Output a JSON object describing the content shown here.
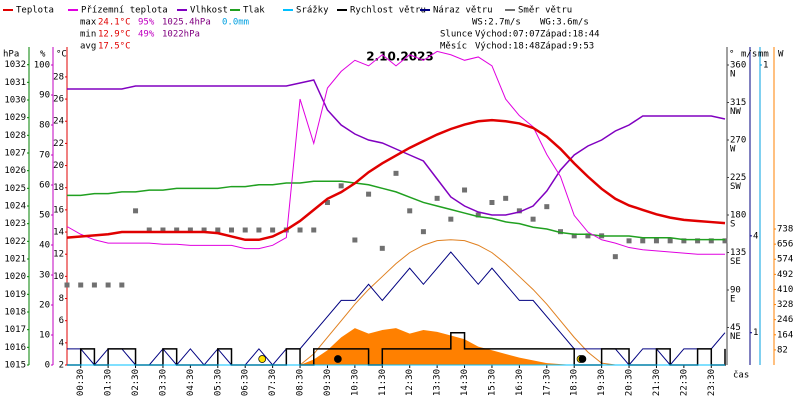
{
  "chart_data": {
    "type": "line",
    "title": "2.10.2023",
    "xlabel": "čas",
    "x": [
      0,
      0.5,
      1,
      1.5,
      2,
      2.5,
      3,
      3.5,
      4,
      4.5,
      5,
      5.5,
      6,
      6.5,
      7,
      7.5,
      8,
      8.5,
      9,
      9.5,
      10,
      10.5,
      11,
      11.5,
      12,
      12.5,
      13,
      13.5,
      14,
      14.5,
      15,
      15.5,
      16,
      16.5,
      17,
      17.5,
      18,
      18.5,
      19,
      19.5,
      20,
      20.5,
      21,
      21.5,
      22,
      22.5,
      23,
      23.5,
      24
    ],
    "xlim": [
      0,
      24
    ],
    "xticks": [
      {
        "value": 0.5,
        "label": "00:30"
      },
      {
        "value": 1.5,
        "label": "01:30"
      },
      {
        "value": 2.5,
        "label": "02:30"
      },
      {
        "value": 3.5,
        "label": "03:30"
      },
      {
        "value": 4.5,
        "label": "04:30"
      },
      {
        "value": 5.5,
        "label": "05:30"
      },
      {
        "value": 6.5,
        "label": "06:30"
      },
      {
        "value": 7.5,
        "label": "07:30"
      },
      {
        "value": 8.5,
        "label": "08:30"
      },
      {
        "value": 9.5,
        "label": "09:30"
      },
      {
        "value": 10.5,
        "label": "10:30"
      },
      {
        "value": 11.5,
        "label": "11:30"
      },
      {
        "value": 12.5,
        "label": "12:30"
      },
      {
        "value": 13.5,
        "label": "13:30"
      },
      {
        "value": 14.5,
        "label": "14:30"
      },
      {
        "value": 15.5,
        "label": "15:30"
      },
      {
        "value": 16.5,
        "label": "16:30"
      },
      {
        "value": 17.5,
        "label": "17:30"
      },
      {
        "value": 18.5,
        "label": "18:30"
      },
      {
        "value": 19.5,
        "label": "19:30"
      },
      {
        "value": 20.5,
        "label": "20:30"
      },
      {
        "value": 21.5,
        "label": "21:30"
      },
      {
        "value": 22.5,
        "label": "22:30"
      },
      {
        "value": 23.5,
        "label": "23:30"
      }
    ],
    "axes": [
      {
        "unit": "hPa",
        "color": "#008000",
        "side": "left",
        "ylim": [
          1015,
          1033
        ],
        "yticks": [
          1015,
          1016,
          1017,
          1018,
          1019,
          1020,
          1021,
          1022,
          1023,
          1024,
          1025,
          1026,
          1027,
          1028,
          1029,
          1030,
          1031,
          1032
        ]
      },
      {
        "unit": "%",
        "color": "#c000c0",
        "side": "left",
        "ylim": [
          0,
          106
        ],
        "yticks": [
          0,
          10,
          20,
          30,
          40,
          50,
          60,
          70,
          80,
          90,
          100
        ]
      },
      {
        "unit": "°C",
        "color": "#e00000",
        "side": "left",
        "ylim": [
          2,
          30.7
        ],
        "yticks": [
          2,
          4,
          6,
          8,
          10,
          12,
          14,
          16,
          18,
          20,
          22,
          24,
          26,
          28
        ]
      },
      {
        "unit": "°",
        "color": "#404040",
        "side": "right",
        "ylim": [
          0,
          381.6
        ],
        "yticks": [
          45,
          90,
          135,
          180,
          225,
          270,
          315,
          360
        ],
        "tick_names": [
          "NE",
          "E",
          "SE",
          "S",
          "SW",
          "W",
          "NW",
          "N"
        ]
      },
      {
        "unit": "m/s",
        "color": "#000080",
        "side": "right",
        "ylim": [
          0,
          9.85
        ],
        "yticks": [
          1,
          4
        ]
      },
      {
        "unit": "mm",
        "color": "#00a0e0",
        "side": "right",
        "ylim": [
          0,
          1.06
        ],
        "yticks": [
          1
        ]
      },
      {
        "unit": "W",
        "color": "#ff8000",
        "side": "right",
        "ylim": [
          0,
          1726
        ],
        "yticks": [
          82,
          164,
          246,
          328,
          410,
          492,
          574,
          656,
          738
        ]
      }
    ],
    "series": [
      {
        "name": "Teplota",
        "color": "#e00000",
        "axis": 2,
        "style": "line",
        "width": 2.5,
        "values": [
          13.5,
          13.6,
          13.7,
          13.8,
          14,
          14,
          14,
          14,
          14,
          14,
          14,
          13.9,
          13.6,
          13.3,
          13.3,
          13.6,
          14.2,
          15,
          16,
          17,
          17.6,
          18.4,
          19.4,
          20.2,
          20.9,
          21.6,
          22.2,
          22.8,
          23.3,
          23.7,
          24,
          24.1,
          24,
          23.8,
          23.4,
          22.6,
          21.5,
          20.2,
          19,
          17.9,
          17,
          16.4,
          16,
          15.6,
          15.3,
          15.1,
          15,
          14.9,
          14.8
        ]
      },
      {
        "name": "Přízemní teplota",
        "color": "#e000e0",
        "axis": 2,
        "style": "line",
        "width": 1,
        "values": [
          14.5,
          13.8,
          13.3,
          13,
          13,
          13,
          13,
          12.9,
          12.9,
          12.8,
          12.8,
          12.8,
          12.8,
          12.5,
          12.5,
          12.8,
          13.5,
          26,
          22,
          27,
          28.5,
          29.5,
          29,
          30,
          29,
          30,
          29.5,
          30.3,
          30,
          29.5,
          29.8,
          29,
          26,
          24.5,
          23.5,
          21,
          19,
          15.5,
          14,
          13.3,
          13,
          12.6,
          12.4,
          12.3,
          12.2,
          12.1,
          12,
          12,
          12
        ]
      },
      {
        "name": "Vlhkost",
        "color": "#8000c0",
        "axis": 1,
        "style": "line",
        "width": 1.5,
        "values": [
          92,
          92,
          92,
          92,
          92,
          93,
          93,
          93,
          93,
          93,
          93,
          93,
          93,
          93,
          93,
          93,
          93,
          94,
          95,
          85,
          80,
          77,
          75,
          74,
          72,
          70,
          68,
          62,
          56,
          53,
          51,
          50,
          50,
          51,
          53,
          58,
          65,
          70,
          73,
          75,
          78,
          80,
          83,
          83,
          83,
          83,
          83,
          83,
          82
        ]
      },
      {
        "name": "Tlak",
        "color": "#20a020",
        "axis": 0,
        "style": "line",
        "width": 1.5,
        "values": [
          1024.6,
          1024.6,
          1024.7,
          1024.7,
          1024.8,
          1024.8,
          1024.9,
          1024.9,
          1025,
          1025,
          1025,
          1025,
          1025.1,
          1025.1,
          1025.2,
          1025.2,
          1025.3,
          1025.3,
          1025.4,
          1025.4,
          1025.4,
          1025.3,
          1025.2,
          1025,
          1024.8,
          1024.5,
          1024.2,
          1024,
          1023.8,
          1023.6,
          1023.4,
          1023.3,
          1023.1,
          1023,
          1022.8,
          1022.7,
          1022.5,
          1022.4,
          1022.4,
          1022.3,
          1022.3,
          1022.3,
          1022.2,
          1022.2,
          1022.2,
          1022.1,
          1022.1,
          1022.1,
          1022.1
        ]
      },
      {
        "name": "Srážky",
        "color": "#00c0ff",
        "axis": 5,
        "style": "line",
        "width": 1,
        "values": [
          0,
          0,
          0,
          0,
          0,
          0,
          0,
          0,
          0,
          0,
          0,
          0,
          0,
          0,
          0,
          0,
          0,
          0,
          0,
          0,
          0,
          0,
          0,
          0,
          0,
          0,
          0,
          0,
          0,
          0,
          0,
          0,
          0,
          0,
          0,
          0,
          0,
          0,
          0,
          0,
          0,
          0,
          0,
          0,
          0,
          0,
          0,
          0,
          0
        ]
      },
      {
        "name": "Rychlost větru",
        "color": "#000000",
        "axis": 4,
        "style": "step",
        "width": 1.5,
        "values": [
          0,
          0.5,
          0,
          0.5,
          0.5,
          0,
          0,
          0.5,
          0,
          0,
          0,
          0.5,
          0,
          0,
          0,
          0,
          0.5,
          0,
          0.5,
          0.5,
          0.5,
          0.5,
          0,
          0.5,
          0.5,
          0.5,
          0.5,
          0.5,
          1,
          0.5,
          0.5,
          0.5,
          0.5,
          0.5,
          0.5,
          0.5,
          0.5,
          0,
          0,
          0.5,
          0.5,
          0,
          0,
          0.5,
          0,
          0,
          0.5,
          0,
          0.5
        ]
      },
      {
        "name": "Náraz větru",
        "color": "#000080",
        "axis": 4,
        "style": "line",
        "width": 1,
        "values": [
          0.5,
          0.5,
          0,
          0.5,
          0.5,
          0,
          0,
          0.5,
          0,
          0.5,
          0,
          0.5,
          0,
          0,
          0.5,
          0,
          0.5,
          0.5,
          1,
          1.5,
          2,
          2,
          2.5,
          2,
          2.5,
          3,
          2.5,
          3,
          3.5,
          3,
          2.5,
          3,
          2.5,
          2,
          2,
          1.5,
          1,
          0.5,
          0.5,
          0.5,
          0.5,
          0,
          0.5,
          0.5,
          0,
          0.5,
          0.5,
          0.5,
          1
        ]
      },
      {
        "name": "Směr větru",
        "color": "#707070",
        "axis": 3,
        "style": "points",
        "width": 5,
        "values": [
          96,
          96,
          96,
          96,
          96,
          185,
          162,
          162,
          162,
          162,
          162,
          162,
          162,
          162,
          162,
          162,
          162,
          162,
          162,
          195,
          215,
          150,
          205,
          140,
          230,
          185,
          160,
          200,
          175,
          210,
          180,
          195,
          200,
          185,
          175,
          190,
          160,
          155,
          155,
          155,
          130,
          149,
          149,
          149,
          149,
          149,
          149,
          149,
          149
        ]
      },
      {
        "color": "#ff8000",
        "axis": 6,
        "style": "area",
        "width": 0,
        "values": [
          0,
          0,
          0,
          0,
          0,
          0,
          0,
          0,
          0,
          0,
          0,
          0,
          0,
          0,
          0,
          0,
          0,
          0,
          30,
          80,
          150,
          200,
          170,
          190,
          200,
          170,
          190,
          180,
          160,
          140,
          100,
          80,
          60,
          40,
          25,
          10,
          5,
          0,
          0,
          0,
          0,
          0,
          0,
          0,
          0,
          0,
          0,
          0,
          0
        ]
      },
      {
        "color": "#e08020",
        "axis": 6,
        "style": "line",
        "width": 1,
        "values": [
          0,
          0,
          0,
          0,
          0,
          0,
          0,
          0,
          0,
          0,
          0,
          0,
          0,
          0,
          0,
          0,
          0,
          0,
          60,
          150,
          240,
          330,
          410,
          480,
          550,
          610,
          650,
          675,
          680,
          675,
          650,
          610,
          550,
          480,
          410,
          330,
          240,
          150,
          70,
          10,
          0,
          0,
          0,
          0,
          0,
          0,
          0,
          0,
          0
        ]
      }
    ],
    "markers": {
      "sun": {
        "color": "#ffe000",
        "x": [
          7.12,
          18.73
        ]
      },
      "moon": {
        "color": "#000000",
        "x": [
          9.88,
          18.8
        ]
      }
    },
    "stats": {
      "rows": [
        {
          "label": "max",
          "values": [
            "24.1°C",
            "95%",
            "1025.4hPa",
            "0.0mm"
          ]
        },
        {
          "label": "min",
          "values": [
            "12.9°C",
            "49%",
            "1022hPa"
          ]
        },
        {
          "label": "avg",
          "values": [
            "17.5°C"
          ]
        }
      ],
      "wind": [
        "WS:2.7m/s",
        "WG:3.6m/s"
      ],
      "sun": [
        "Slunce",
        "Východ:07:07",
        "Západ:18:44"
      ],
      "moon": [
        "Měsíc",
        "Východ:18:48",
        "Západ:9:53"
      ]
    }
  }
}
